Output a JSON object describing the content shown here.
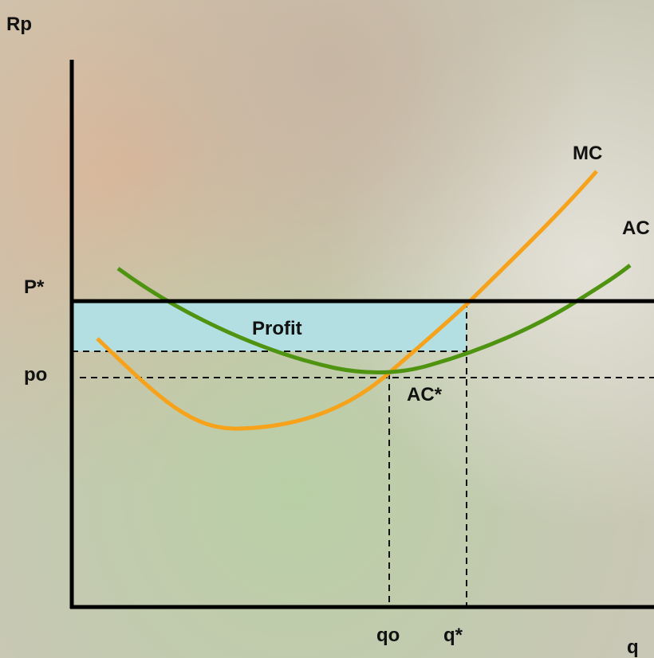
{
  "axes": {
    "y_label": "Rp",
    "x_label": "q"
  },
  "curves": {
    "mc": "MC",
    "ac": "AC"
  },
  "price_labels": {
    "p_star": "P*",
    "po": "po"
  },
  "quantity_labels": {
    "qo": "qo",
    "q_star": "q*"
  },
  "annotations": {
    "profit": "Profit",
    "ac_star": "AC*"
  }
}
